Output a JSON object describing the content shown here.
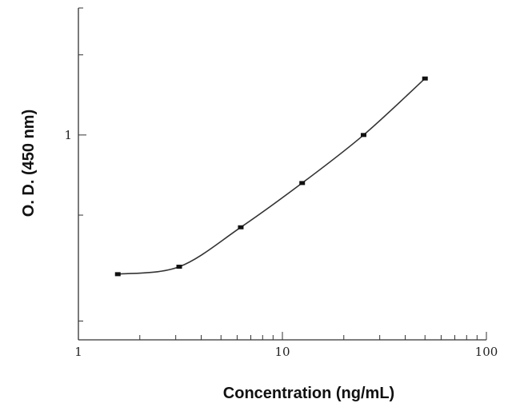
{
  "chart_data": {
    "type": "line",
    "xlabel": "Concentration (ng/mL)",
    "ylabel": "O. D. (450 nm)",
    "x_scale": "log",
    "y_scale": "log",
    "xlim": [
      1,
      100
    ],
    "ylim": [
      0.17,
      3.0
    ],
    "x_ticks": [
      1,
      10,
      100
    ],
    "x_tick_labels": [
      "1",
      "10",
      "100"
    ],
    "y_ticks": [
      1
    ],
    "y_tick_labels": [
      "1"
    ],
    "series": [
      {
        "x": [
          1.56,
          3.12,
          6.25,
          12.5,
          25,
          50
        ],
        "y": [
          0.3,
          0.32,
          0.45,
          0.66,
          1.0,
          1.63
        ]
      }
    ],
    "grid": false,
    "colors": {
      "line": "#333333",
      "axis": "#333333"
    }
  }
}
